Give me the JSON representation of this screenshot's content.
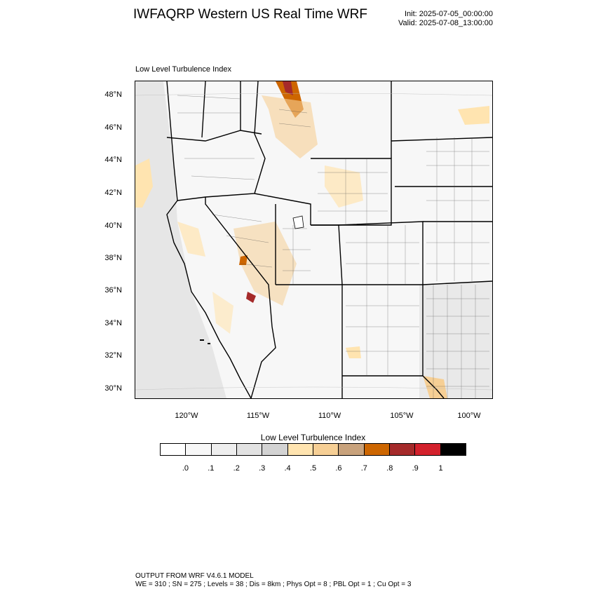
{
  "header": {
    "title": "IWFAQRP Western US Real Time WRF",
    "init": "Init: 2025-07-05_00:00:00",
    "valid": "Valid: 2025-07-08_13:00:00"
  },
  "map": {
    "subtitle": "Low Level Turbulence Index",
    "lat_labels": [
      "48°N",
      "46°N",
      "44°N",
      "42°N",
      "40°N",
      "38°N",
      "36°N",
      "34°N",
      "32°N",
      "30°N"
    ],
    "lon_labels": [
      "120°W",
      "115°W",
      "110°W",
      "105°W",
      "100°W"
    ],
    "background_color": "#f0f0f0",
    "boundary_color": "#000000"
  },
  "colorbar": {
    "title": "Low Level Turbulence Index",
    "colors": [
      "#ffffff",
      "#f7f7f7",
      "#eeeeee",
      "#e2e2e2",
      "#d3d3d3",
      "#ffe4b0",
      "#f6cf95",
      "#c8a27c",
      "#cd6600",
      "#a52a2a",
      "#d3212c",
      "#000000"
    ],
    "labels": [
      ".0",
      ".1",
      ".2",
      ".3",
      ".4",
      ".5",
      ".6",
      ".7",
      ".8",
      ".9",
      "1"
    ]
  },
  "footer": {
    "line1": "OUTPUT FROM WRF V4.6.1 MODEL",
    "line2": "WE = 310 ; SN = 275 ; Levels = 38 ; Dis = 8km ; Phys Opt = 8 ; PBL Opt = 1 ; Cu Opt = 3"
  }
}
